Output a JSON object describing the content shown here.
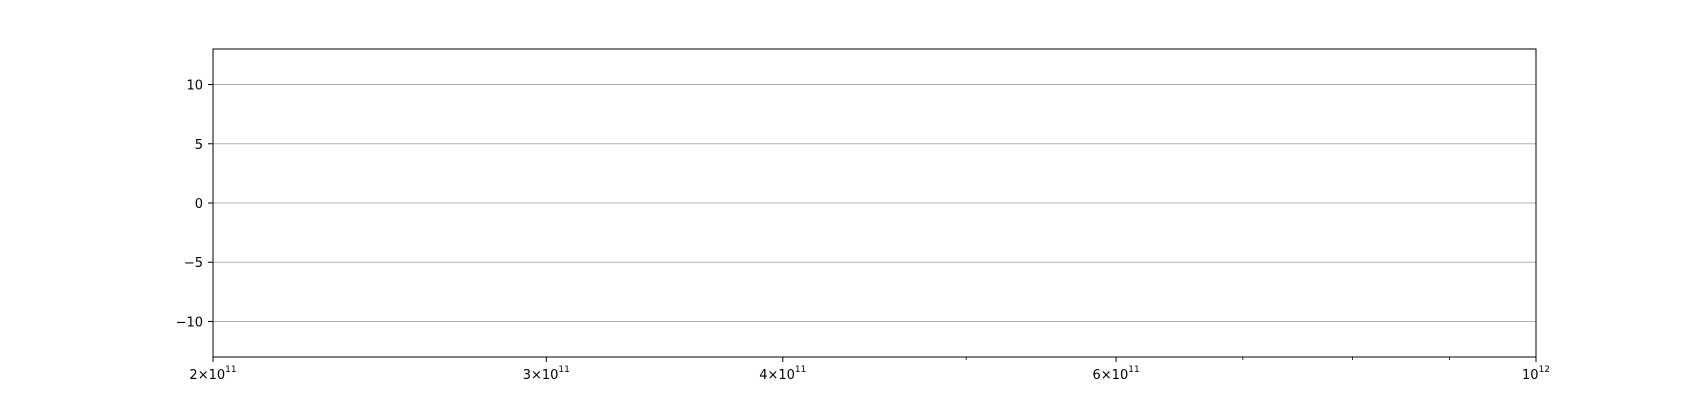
{
  "chart_data": {
    "type": "line",
    "title": "",
    "xlabel": "",
    "ylabel": "",
    "xscale": "log",
    "xlim": [
      200000000000,
      1000000000000
    ],
    "ylim": [
      -13,
      13
    ],
    "grid": {
      "y": true,
      "x": false
    },
    "series": [],
    "x_ticks": [
      {
        "value": 200000000000,
        "mantissa": "2",
        "exponent": "11"
      },
      {
        "value": 300000000000,
        "mantissa": "3",
        "exponent": "11"
      },
      {
        "value": 400000000000,
        "mantissa": "4",
        "exponent": "11"
      },
      {
        "value": 600000000000,
        "mantissa": "6",
        "exponent": "11"
      },
      {
        "value": 1000000000000,
        "mantissa": "",
        "exponent": "12"
      }
    ],
    "x_minor_ticks": [
      500000000000,
      700000000000,
      800000000000,
      900000000000
    ],
    "y_ticks": [
      {
        "value": 10,
        "label": "10"
      },
      {
        "value": 5,
        "label": "5"
      },
      {
        "value": 0,
        "label": "0"
      },
      {
        "value": -5,
        "label": "−5"
      },
      {
        "value": -10,
        "label": "−10"
      }
    ],
    "colors": {
      "grid": "#b0b0b0",
      "axes": "#000000"
    }
  }
}
